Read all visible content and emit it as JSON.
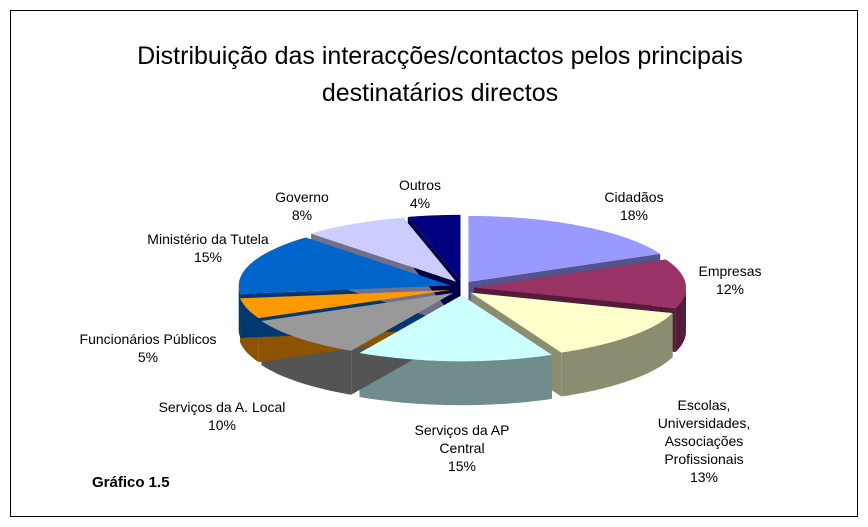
{
  "chart_data": {
    "type": "pie",
    "title": "Distribuição das interacções/contactos pelos principais destinatários directos",
    "categories": [
      "Cidadãos",
      "Empresas",
      "Escolas, Universidades, Associações Profissionais",
      "Serviços da AP Central",
      "Serviços da A. Local",
      "Funcionários Públicos",
      "Ministério da Tutela",
      "Governo",
      "Outros"
    ],
    "values": [
      18,
      12,
      13,
      15,
      10,
      5,
      15,
      8,
      4
    ],
    "value_labels": [
      "18%",
      "12%",
      "13%",
      "15%",
      "10%",
      "5%",
      "15%",
      "8%",
      "4%"
    ],
    "colors": [
      "#9999ff",
      "#993366",
      "#ffffcc",
      "#ccffff",
      "#999999",
      "#ff9900",
      "#0066cc",
      "#ccccff",
      "#000080"
    ],
    "note": "Gráfico 1.5"
  }
}
